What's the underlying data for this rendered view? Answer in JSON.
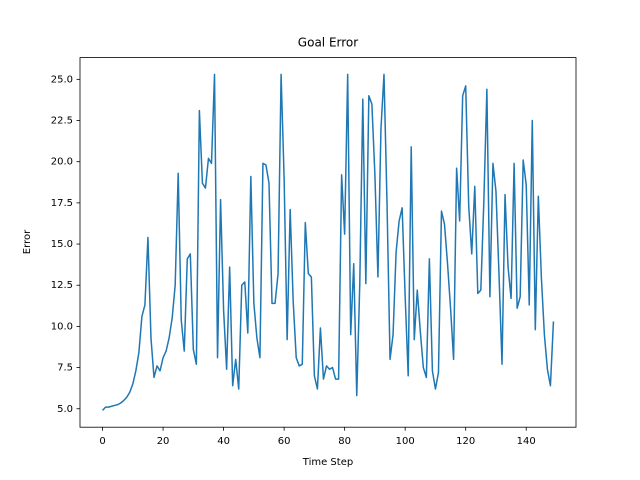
{
  "chart_data": {
    "type": "line",
    "title": "Goal Error",
    "x_label": "Time Step",
    "y_label": "Error",
    "color": "#1f77b4",
    "x": [
      0,
      1,
      2,
      3,
      4,
      5,
      6,
      7,
      8,
      9,
      10,
      11,
      12,
      13,
      14,
      15,
      16,
      17,
      18,
      19,
      20,
      21,
      22,
      23,
      24,
      25,
      26,
      27,
      28,
      29,
      30,
      31,
      32,
      33,
      34,
      35,
      36,
      37,
      38,
      39,
      40,
      41,
      42,
      43,
      44,
      45,
      46,
      47,
      48,
      49,
      50,
      51,
      52,
      53,
      54,
      55,
      56,
      57,
      58,
      59,
      60,
      61,
      62,
      63,
      64,
      65,
      66,
      67,
      68,
      69,
      70,
      71,
      72,
      73,
      74,
      75,
      76,
      77,
      78,
      79,
      80,
      81,
      82,
      83,
      84,
      85,
      86,
      87,
      88,
      89,
      90,
      91,
      92,
      93,
      94,
      95,
      96,
      97,
      98,
      99,
      100,
      101,
      102,
      103,
      104,
      105,
      106,
      107,
      108,
      109,
      110,
      111,
      112,
      113,
      114,
      115,
      116,
      117,
      118,
      119,
      120,
      121,
      122,
      123,
      124,
      125,
      126,
      127,
      128,
      129,
      130,
      131,
      132,
      133,
      134,
      135,
      136,
      137,
      138,
      139,
      140,
      141,
      142,
      143,
      144,
      145,
      146,
      147,
      148,
      149
    ],
    "values": [
      4.9,
      5.1,
      5.1,
      5.15,
      5.2,
      5.25,
      5.35,
      5.5,
      5.7,
      6.0,
      6.5,
      7.3,
      8.4,
      10.6,
      11.3,
      15.4,
      9.3,
      6.9,
      7.6,
      7.3,
      8.1,
      8.5,
      9.3,
      10.5,
      12.5,
      19.3,
      10.4,
      8.5,
      14.1,
      14.4,
      8.6,
      7.7,
      23.1,
      18.7,
      18.4,
      20.2,
      19.9,
      25.3,
      8.1,
      17.7,
      11.0,
      7.4,
      13.6,
      6.4,
      8.0,
      6.2,
      12.5,
      12.7,
      9.6,
      19.1,
      11.4,
      9.3,
      8.1,
      19.9,
      19.8,
      18.7,
      11.4,
      11.4,
      13.2,
      25.3,
      19.0,
      9.2,
      17.1,
      11.5,
      8.1,
      7.6,
      7.7,
      16.3,
      13.2,
      13.0,
      7.0,
      6.2,
      9.9,
      6.8,
      7.6,
      7.4,
      7.5,
      6.8,
      6.8,
      19.2,
      15.6,
      25.3,
      9.5,
      13.8,
      5.8,
      12.6,
      23.8,
      12.6,
      24.0,
      23.5,
      19.2,
      13.0,
      22.0,
      25.3,
      17.5,
      8.0,
      9.5,
      14.5,
      16.4,
      17.2,
      11.8,
      7.0,
      20.9,
      9.2,
      12.2,
      9.7,
      7.5,
      6.9,
      14.1,
      7.3,
      6.2,
      7.2,
      17.0,
      16.2,
      13.8,
      11.1,
      8.0,
      19.6,
      16.4,
      24.0,
      24.6,
      17.3,
      14.4,
      18.5,
      12.0,
      12.2,
      17.6,
      24.4,
      11.8,
      19.9,
      18.2,
      13.2,
      7.7,
      18.0,
      13.6,
      11.7,
      19.9,
      11.1,
      11.8,
      20.1,
      18.6,
      11.3,
      22.5,
      9.8,
      17.9,
      13.0,
      9.5,
      7.4,
      6.4,
      10.3
    ],
    "xlim": [
      -7.45,
      156.45
    ],
    "ylim": [
      3.88,
      26.32
    ],
    "xticks": [
      0,
      20,
      40,
      60,
      80,
      100,
      120,
      140
    ],
    "yticks": [
      {
        "value": 5,
        "label": "5.0"
      },
      7.5,
      {
        "value": 10,
        "label": "10.0"
      },
      12.5,
      {
        "value": 15,
        "label": "15.0"
      },
      17.5,
      {
        "value": 20,
        "label": "20.0"
      },
      22.5,
      {
        "value": 25,
        "label": "25.0"
      }
    ]
  }
}
